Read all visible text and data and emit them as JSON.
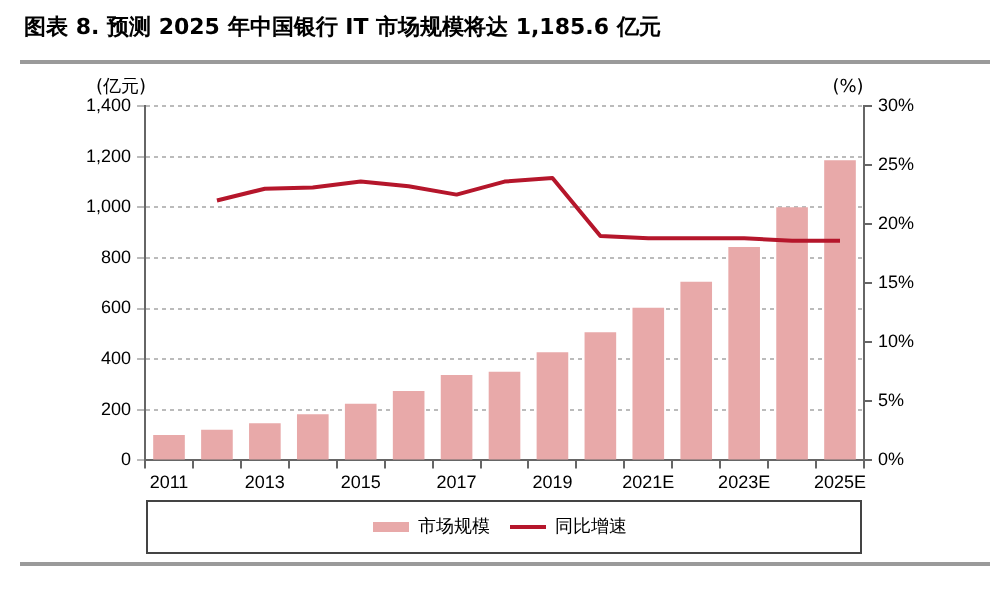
{
  "chart_data": {
    "type": "bar",
    "title": "图表 8. 预测 2025 年中国银行 IT 市场规模将达 1,185.6 亿元",
    "ylabel": "(亿元)",
    "y2label": "(%)",
    "categories": [
      "2011",
      null,
      "2013",
      null,
      "2015",
      null,
      "2017",
      null,
      "2019",
      null,
      "2021E",
      null,
      "2023E",
      null,
      "2025E"
    ],
    "series": [
      {
        "name": "市场规模",
        "color": "#e8a9a9",
        "values": [
          100,
          121,
          147,
          182,
          224,
          274,
          337,
          350,
          427,
          506,
          603,
          706,
          843,
          1000,
          1186
        ]
      },
      {
        "name": "同比增速",
        "type": "line",
        "axis": "y2",
        "color": "#b5162b",
        "values": [
          null,
          22,
          23,
          23.1,
          23.6,
          23.2,
          22.5,
          23.6,
          23.9,
          19,
          18.8,
          18.8,
          18.8,
          18.6,
          18.6
        ]
      }
    ],
    "ylim": [
      0,
      1400
    ],
    "yticks": [
      0,
      200,
      400,
      600,
      800,
      {
        "value": 1000,
        "label": "1,000"
      },
      {
        "value": 1200,
        "label": "1,200"
      },
      {
        "value": 1400,
        "label": "1,400"
      }
    ],
    "y2lim": [
      0,
      30
    ],
    "y2ticks": [
      {
        "value": 0,
        "label": "0%"
      },
      {
        "value": 5,
        "label": "5%"
      },
      {
        "value": 10,
        "label": "10%"
      },
      {
        "value": 15,
        "label": "15%"
      },
      {
        "value": 20,
        "label": "20%"
      },
      {
        "value": 25,
        "label": "25%"
      },
      {
        "value": 30,
        "label": "30%"
      }
    ],
    "grid": "y",
    "legend": "bottom"
  }
}
